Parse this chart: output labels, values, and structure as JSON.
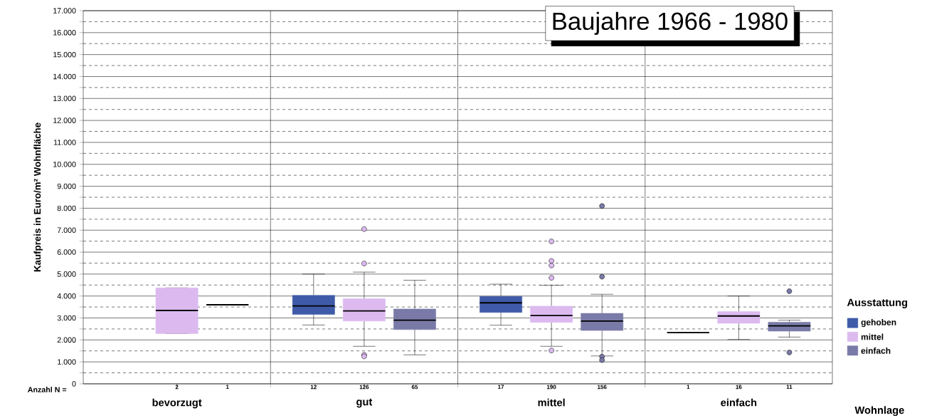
{
  "chart_data": {
    "type": "box",
    "title": "Baujahre 1966 - 1980",
    "ylabel": "Kaufpreis in Euro/m² Wohnfläche",
    "xlabel": "Wohnlage",
    "legend_title": "Ausstattung",
    "legend": "right",
    "grid": true,
    "categories": [
      "bevorzugt",
      "gut",
      "mittel",
      "einfach"
    ],
    "ylim": [
      0,
      17000
    ],
    "yticks": [
      0,
      {
        "value": 500,
        "label": null
      },
      {
        "value": 1000,
        "label": "1.000"
      },
      {
        "value": 1500,
        "label": null
      },
      {
        "value": 2000,
        "label": "2.000"
      },
      {
        "value": 2500,
        "label": null
      },
      {
        "value": 3000,
        "label": "3.000"
      },
      {
        "value": 3500,
        "label": null
      },
      {
        "value": 4000,
        "label": "4.000"
      },
      {
        "value": 4500,
        "label": null
      },
      {
        "value": 5000,
        "label": "5.000"
      },
      {
        "value": 5500,
        "label": null
      },
      {
        "value": 6000,
        "label": "6.000"
      },
      {
        "value": 6500,
        "label": null
      },
      {
        "value": 7000,
        "label": "7.000"
      },
      {
        "value": 7500,
        "label": null
      },
      {
        "value": 8000,
        "label": "8.000"
      },
      {
        "value": 8500,
        "label": null
      },
      {
        "value": 9000,
        "label": "9.000"
      },
      {
        "value": 9500,
        "label": null
      },
      {
        "value": 10000,
        "label": "10.000"
      },
      {
        "value": 10500,
        "label": null
      },
      {
        "value": 11000,
        "label": "11.000"
      },
      {
        "value": 11500,
        "label": null
      },
      {
        "value": 12000,
        "label": "12.000"
      },
      {
        "value": 12500,
        "label": null
      },
      {
        "value": 13000,
        "label": "13.000"
      },
      {
        "value": 13500,
        "label": null
      },
      {
        "value": 14000,
        "label": "14.000"
      },
      {
        "value": 14500,
        "label": null
      },
      {
        "value": 15000,
        "label": "15.000"
      },
      {
        "value": 15500,
        "label": null
      },
      {
        "value": 16000,
        "label": "16.000"
      },
      {
        "value": 16500,
        "label": null
      },
      {
        "value": 17000,
        "label": "17.000"
      }
    ],
    "annotations": [
      "Anzahl  N ="
    ],
    "series": [
      {
        "name": "gehoben",
        "color": "#3f5aa8",
        "value_labels": [
          null,
          "12",
          "17",
          "1"
        ],
        "boxes": [
          null,
          {
            "low": 2680,
            "q1": 3160,
            "median": 3550,
            "q3": 4030,
            "high": 5000
          },
          {
            "low": 2670,
            "q1": 3250,
            "median": 3690,
            "q3": 3980,
            "high": 4540
          },
          {
            "low": 2330,
            "q1": 2330,
            "median": 2330,
            "q3": 2330,
            "high": 2330
          }
        ]
      },
      {
        "name": "mittel",
        "color": "#dcbaf0",
        "value_labels": [
          "2",
          "126",
          "190",
          "16"
        ],
        "boxes": [
          {
            "low": 2290,
            "q1": 2290,
            "median": 3340,
            "q3": 4370,
            "high": 4370
          },
          {
            "low": 1710,
            "q1": 2860,
            "median": 3320,
            "q3": 3880,
            "high": 5090,
            "outliers": [
              7050,
              5480,
              1320,
              1250
            ]
          },
          {
            "low": 1710,
            "q1": 2800,
            "median": 3110,
            "q3": 3540,
            "high": 4490,
            "outliers": [
              6490,
              5600,
              5390,
              4830,
              1520
            ]
          },
          {
            "low": 2020,
            "q1": 2760,
            "median": 3090,
            "q3": 3290,
            "high": 4000
          }
        ]
      },
      {
        "name": "einfach",
        "color": "#7a7aa8",
        "value_labels": [
          "1",
          "65",
          "156",
          "11"
        ],
        "boxes": [
          {
            "low": 3600,
            "q1": 3600,
            "median": 3600,
            "q3": 3600,
            "high": 3600
          },
          {
            "low": 1320,
            "q1": 2470,
            "median": 2900,
            "q3": 3410,
            "high": 4720
          },
          {
            "low": 1270,
            "q1": 2430,
            "median": 2860,
            "q3": 3210,
            "high": 4080,
            "outliers": [
              8100,
              4880,
              1240,
              1080
            ]
          },
          {
            "low": 2130,
            "q1": 2400,
            "median": 2640,
            "q3": 2810,
            "high": 2900,
            "outliers": [
              4220,
              1430
            ]
          }
        ]
      }
    ]
  }
}
